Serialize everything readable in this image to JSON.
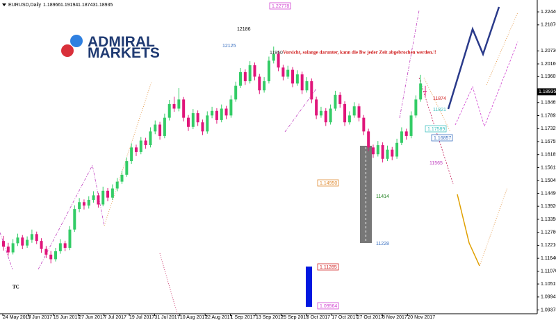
{
  "chart_data": {
    "type": "candlestick",
    "symbol": "EURUSD,Daily",
    "brand": [
      "ADMIRAL",
      "MARKETS"
    ],
    "ylim": [
      1.0921,
      1.2296
    ],
    "yticks": [
      {
        "value": 1.2244,
        "label": "1.22440"
      },
      {
        "value": 1.2187,
        "label": "1.21870"
      },
      {
        "value": 1.2073,
        "label": "1.20730"
      },
      {
        "value": 1.2016,
        "label": "1.20160"
      },
      1.19605,
      {
        "value": 1.18465,
        "label": "1.18465"
      },
      1.17895,
      1.17325,
      1.16755,
      1.16185,
      1.15615,
      1.15045,
      {
        "value": 1.1449,
        "label": "1.14490"
      },
      {
        "value": 1.1392,
        "label": "1.13920"
      },
      {
        "value": 1.1335,
        "label": "1.13350"
      },
      {
        "value": 1.1278,
        "label": "1.12780"
      },
      {
        "value": 1.1221,
        "label": "1.12210"
      },
      {
        "value": 1.1164,
        "label": "1.11640"
      },
      {
        "value": 1.1107,
        "label": "1.11070"
      },
      1.10515,
      1.09945,
      1.09375
    ],
    "x_labels": [
      "24 May 2017",
      "5 Jun 2017",
      "15 Jun 2017",
      "27 Jun 2017",
      "7 Jul 2017",
      "19 Jul 2017",
      "31 Jul 2017",
      "10 Aug 2017",
      "22 Aug 2017",
      "1 Sep 2017",
      "13 Sep 2017",
      "25 Sep 2017",
      "5 Oct 2017",
      "17 Oct 2017",
      "27 Oct 2017",
      "8 Nov 2017",
      "20 Nov 2017"
    ],
    "up_color": "#33cc66",
    "down_color": "#e0157a",
    "candles": [
      [
        1.124,
        1.1262,
        1.1198,
        1.1215
      ],
      [
        1.1215,
        1.1232,
        1.1175,
        1.119
      ],
      [
        1.119,
        1.1248,
        1.1181,
        1.123
      ],
      [
        1.123,
        1.1272,
        1.1218,
        1.1255
      ],
      [
        1.1255,
        1.1266,
        1.1204,
        1.122
      ],
      [
        1.122,
        1.126,
        1.121,
        1.1245
      ],
      [
        1.1245,
        1.129,
        1.1232,
        1.127
      ],
      [
        1.127,
        1.1281,
        1.1226,
        1.124
      ],
      [
        1.124,
        1.1252,
        1.1188,
        1.1205
      ],
      [
        1.1205,
        1.1218,
        1.1165,
        1.118
      ],
      [
        1.118,
        1.1196,
        1.1142,
        1.116
      ],
      [
        1.116,
        1.121,
        1.115,
        1.1195
      ],
      [
        1.1195,
        1.1248,
        1.1184,
        1.123
      ],
      [
        1.123,
        1.1241,
        1.1195,
        1.121
      ],
      [
        1.121,
        1.1305,
        1.12,
        1.129
      ],
      [
        1.129,
        1.1396,
        1.128,
        1.138
      ],
      [
        1.138,
        1.1428,
        1.1366,
        1.141
      ],
      [
        1.141,
        1.1422,
        1.1378,
        1.1395
      ],
      [
        1.1395,
        1.1436,
        1.1382,
        1.142
      ],
      [
        1.142,
        1.1458,
        1.1408,
        1.144
      ],
      [
        1.144,
        1.1451,
        1.1386,
        1.14
      ],
      [
        1.14,
        1.1478,
        1.1392,
        1.146
      ],
      [
        1.146,
        1.1472,
        1.1414,
        1.143
      ],
      [
        1.143,
        1.1488,
        1.142,
        1.147
      ],
      [
        1.147,
        1.1516,
        1.1458,
        1.15
      ],
      [
        1.15,
        1.1548,
        1.149,
        1.153
      ],
      [
        1.153,
        1.1606,
        1.1521,
        1.159
      ],
      [
        1.159,
        1.1668,
        1.1578,
        1.165
      ],
      [
        1.165,
        1.1662,
        1.1612,
        1.163
      ],
      [
        1.163,
        1.1696,
        1.162,
        1.168
      ],
      [
        1.168,
        1.1692,
        1.1644,
        1.166
      ],
      [
        1.166,
        1.1738,
        1.165,
        1.172
      ],
      [
        1.172,
        1.1768,
        1.1708,
        1.175
      ],
      [
        1.175,
        1.1762,
        1.1684,
        1.17
      ],
      [
        1.17,
        1.1798,
        1.169,
        1.178
      ],
      [
        1.178,
        1.1858,
        1.1768,
        1.184
      ],
      [
        1.184,
        1.1872,
        1.1806,
        1.182
      ],
      [
        1.182,
        1.191,
        1.1808,
        1.186
      ],
      [
        1.186,
        1.1871,
        1.1764,
        1.178
      ],
      [
        1.178,
        1.1792,
        1.1722,
        1.174
      ],
      [
        1.174,
        1.1818,
        1.173,
        1.18
      ],
      [
        1.18,
        1.1812,
        1.1744,
        1.176
      ],
      [
        1.176,
        1.1772,
        1.1704,
        1.172
      ],
      [
        1.172,
        1.1808,
        1.171,
        1.179
      ],
      [
        1.179,
        1.1828,
        1.1778,
        1.181
      ],
      [
        1.181,
        1.1822,
        1.1754,
        1.177
      ],
      [
        1.177,
        1.1838,
        1.176,
        1.182
      ],
      [
        1.182,
        1.1832,
        1.1774,
        1.179
      ],
      [
        1.179,
        1.1878,
        1.178,
        1.186
      ],
      [
        1.186,
        1.1938,
        1.185,
        1.192
      ],
      [
        1.192,
        1.1998,
        1.191,
        1.198
      ],
      [
        1.198,
        1.1992,
        1.1924,
        1.194
      ],
      [
        1.194,
        1.2028,
        1.193,
        1.201
      ],
      [
        1.201,
        1.2022,
        1.1944,
        1.196
      ],
      [
        1.196,
        1.1972,
        1.1884,
        1.19
      ],
      [
        1.19,
        1.1958,
        1.189,
        1.194
      ],
      [
        1.194,
        1.2048,
        1.193,
        1.203
      ],
      [
        1.203,
        1.2092,
        1.2018,
        1.206
      ],
      [
        1.206,
        1.2072,
        1.1984,
        1.2
      ],
      [
        1.2,
        1.2012,
        1.1944,
        1.196
      ],
      [
        1.196,
        1.2008,
        1.195,
        1.199
      ],
      [
        1.199,
        1.2002,
        1.1914,
        1.193
      ],
      [
        1.193,
        1.1988,
        1.192,
        1.197
      ],
      [
        1.197,
        1.1982,
        1.1884,
        1.19
      ],
      [
        1.19,
        1.1958,
        1.189,
        1.194
      ],
      [
        1.194,
        1.1952,
        1.1844,
        1.186
      ],
      [
        1.186,
        1.1872,
        1.1774,
        1.179
      ],
      [
        1.179,
        1.1828,
        1.178,
        1.181
      ],
      [
        1.181,
        1.1822,
        1.1744,
        1.176
      ],
      [
        1.176,
        1.1838,
        1.175,
        1.182
      ],
      [
        1.182,
        1.1898,
        1.181,
        1.188
      ],
      [
        1.188,
        1.1892,
        1.1824,
        1.184
      ],
      [
        1.184,
        1.1852,
        1.1744,
        1.176
      ],
      [
        1.176,
        1.1808,
        1.175,
        1.179
      ],
      [
        1.179,
        1.1848,
        1.178,
        1.183
      ],
      [
        1.183,
        1.1842,
        1.1764,
        1.178
      ],
      [
        1.178,
        1.1792,
        1.1704,
        1.172
      ],
      [
        1.172,
        1.1732,
        1.1634,
        1.165
      ],
      [
        1.165,
        1.1662,
        1.1604,
        1.162
      ],
      [
        1.162,
        1.1678,
        1.161,
        1.166
      ],
      [
        1.166,
        1.1672,
        1.1584,
        1.16
      ],
      [
        1.16,
        1.1658,
        1.159,
        1.164
      ],
      [
        1.164,
        1.1652,
        1.1594,
        1.161
      ],
      [
        1.161,
        1.1688,
        1.16,
        1.167
      ],
      [
        1.167,
        1.1738,
        1.166,
        1.172
      ],
      [
        1.172,
        1.1732,
        1.1684,
        1.17
      ],
      [
        1.17,
        1.1808,
        1.169,
        1.179
      ],
      [
        1.179,
        1.1878,
        1.178,
        1.186
      ],
      [
        1.186,
        1.1968,
        1.185,
        1.193
      ],
      [
        1.18966,
        1.19194,
        1.18743,
        1.18935
      ]
    ],
    "annotations": {
      "top_box": "1.22778",
      "a12186": "12186",
      "a12125": "12125",
      "a11950": "11950",
      "warning": "Vorsicht, solange darunter, kann die Bw jeder Zeit abgebrochen werden.!!",
      "a11874": "11874",
      "a11821": "11821",
      "box17589": "1.17589",
      "box16857": "1.16857",
      "a11565": "11565",
      "box14950": "1.14950",
      "a11414": "11414",
      "a11228": "11228",
      "box11285": "1.11285",
      "box09564": "1.09564",
      "tc": "TC"
    }
  }
}
